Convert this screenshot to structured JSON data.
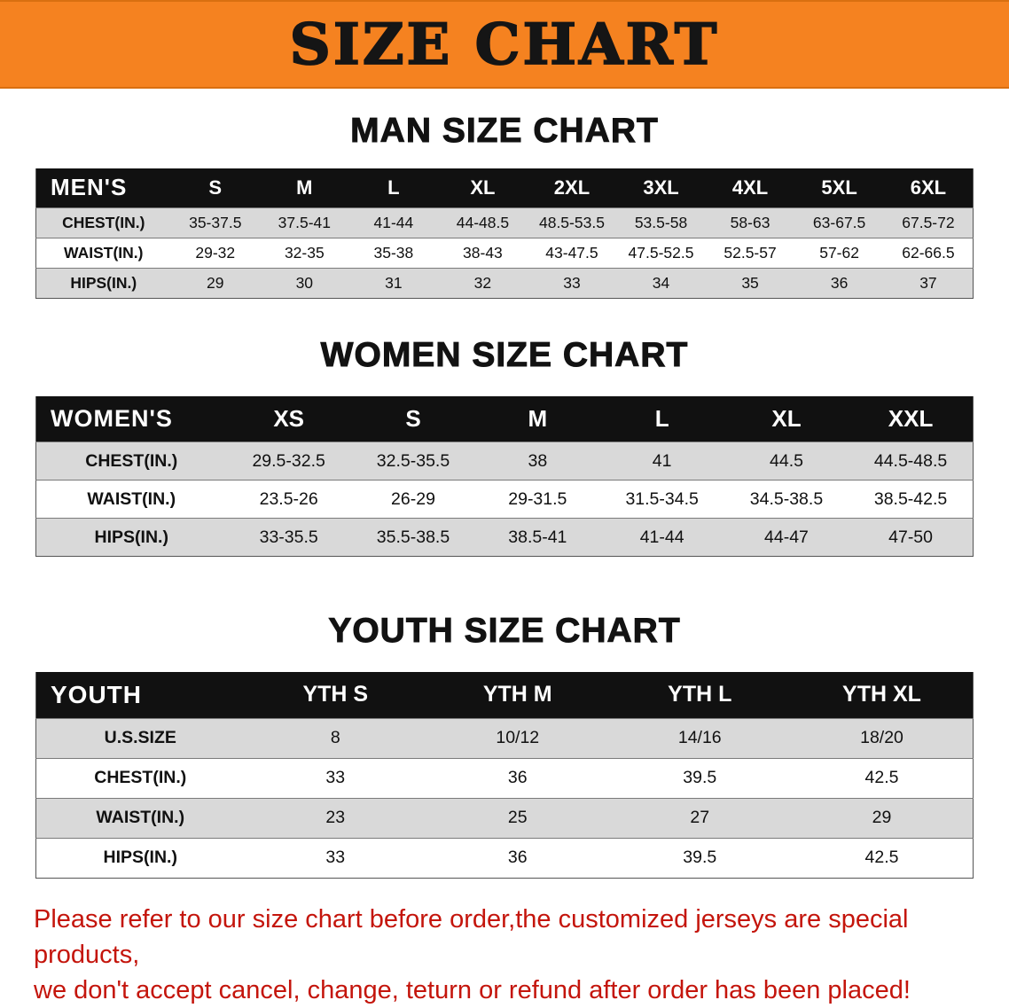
{
  "banner": {
    "title": "SIZE CHART"
  },
  "colors": {
    "banner_orange": "#F58220",
    "header_black": "#111111",
    "row_gray": "#D9D9D9",
    "disclaimer_red": "#C4150C"
  },
  "chart_data": [
    {
      "type": "table",
      "heading": "MAN SIZE CHART",
      "corner_label": "MEN'S",
      "columns": [
        "S",
        "M",
        "L",
        "XL",
        "2XL",
        "3XL",
        "4XL",
        "5XL",
        "6XL"
      ],
      "rows": [
        {
          "label": "CHEST(IN.)",
          "values": [
            "35-37.5",
            "37.5-41",
            "41-44",
            "44-48.5",
            "48.5-53.5",
            "53.5-58",
            "58-63",
            "63-67.5",
            "67.5-72"
          ]
        },
        {
          "label": "WAIST(IN.)",
          "values": [
            "29-32",
            "32-35",
            "35-38",
            "38-43",
            "43-47.5",
            "47.5-52.5",
            "52.5-57",
            "57-62",
            "62-66.5"
          ]
        },
        {
          "label": "HIPS(IN.)",
          "values": [
            "29",
            "30",
            "31",
            "32",
            "33",
            "34",
            "35",
            "36",
            "37"
          ]
        }
      ]
    },
    {
      "type": "table",
      "heading": "WOMEN SIZE CHART",
      "corner_label": "WOMEN'S",
      "columns": [
        "XS",
        "S",
        "M",
        "L",
        "XL",
        "XXL"
      ],
      "rows": [
        {
          "label": "CHEST(IN.)",
          "values": [
            "29.5-32.5",
            "32.5-35.5",
            "38",
            "41",
            "44.5",
            "44.5-48.5"
          ]
        },
        {
          "label": "WAIST(IN.)",
          "values": [
            "23.5-26",
            "26-29",
            "29-31.5",
            "31.5-34.5",
            "34.5-38.5",
            "38.5-42.5"
          ]
        },
        {
          "label": "HIPS(IN.)",
          "values": [
            "33-35.5",
            "35.5-38.5",
            "38.5-41",
            "41-44",
            "44-47",
            "47-50"
          ]
        }
      ]
    },
    {
      "type": "table",
      "heading": "YOUTH SIZE CHART",
      "corner_label": "YOUTH",
      "columns": [
        "YTH S",
        "YTH M",
        "YTH L",
        "YTH XL"
      ],
      "rows": [
        {
          "label": "U.S.SIZE",
          "values": [
            "8",
            "10/12",
            "14/16",
            "18/20"
          ]
        },
        {
          "label": "CHEST(IN.)",
          "values": [
            "33",
            "36",
            "39.5",
            "42.5"
          ]
        },
        {
          "label": "WAIST(IN.)",
          "values": [
            "23",
            "25",
            "27",
            "29"
          ]
        },
        {
          "label": "HIPS(IN.)",
          "values": [
            "33",
            "36",
            "39.5",
            "42.5"
          ]
        }
      ]
    }
  ],
  "disclaimer": {
    "line1": "Please refer to our size chart before order,the customized jerseys are special products,",
    "line2": "we don't accept cancel, change, teturn or refund after order has been placed!"
  }
}
